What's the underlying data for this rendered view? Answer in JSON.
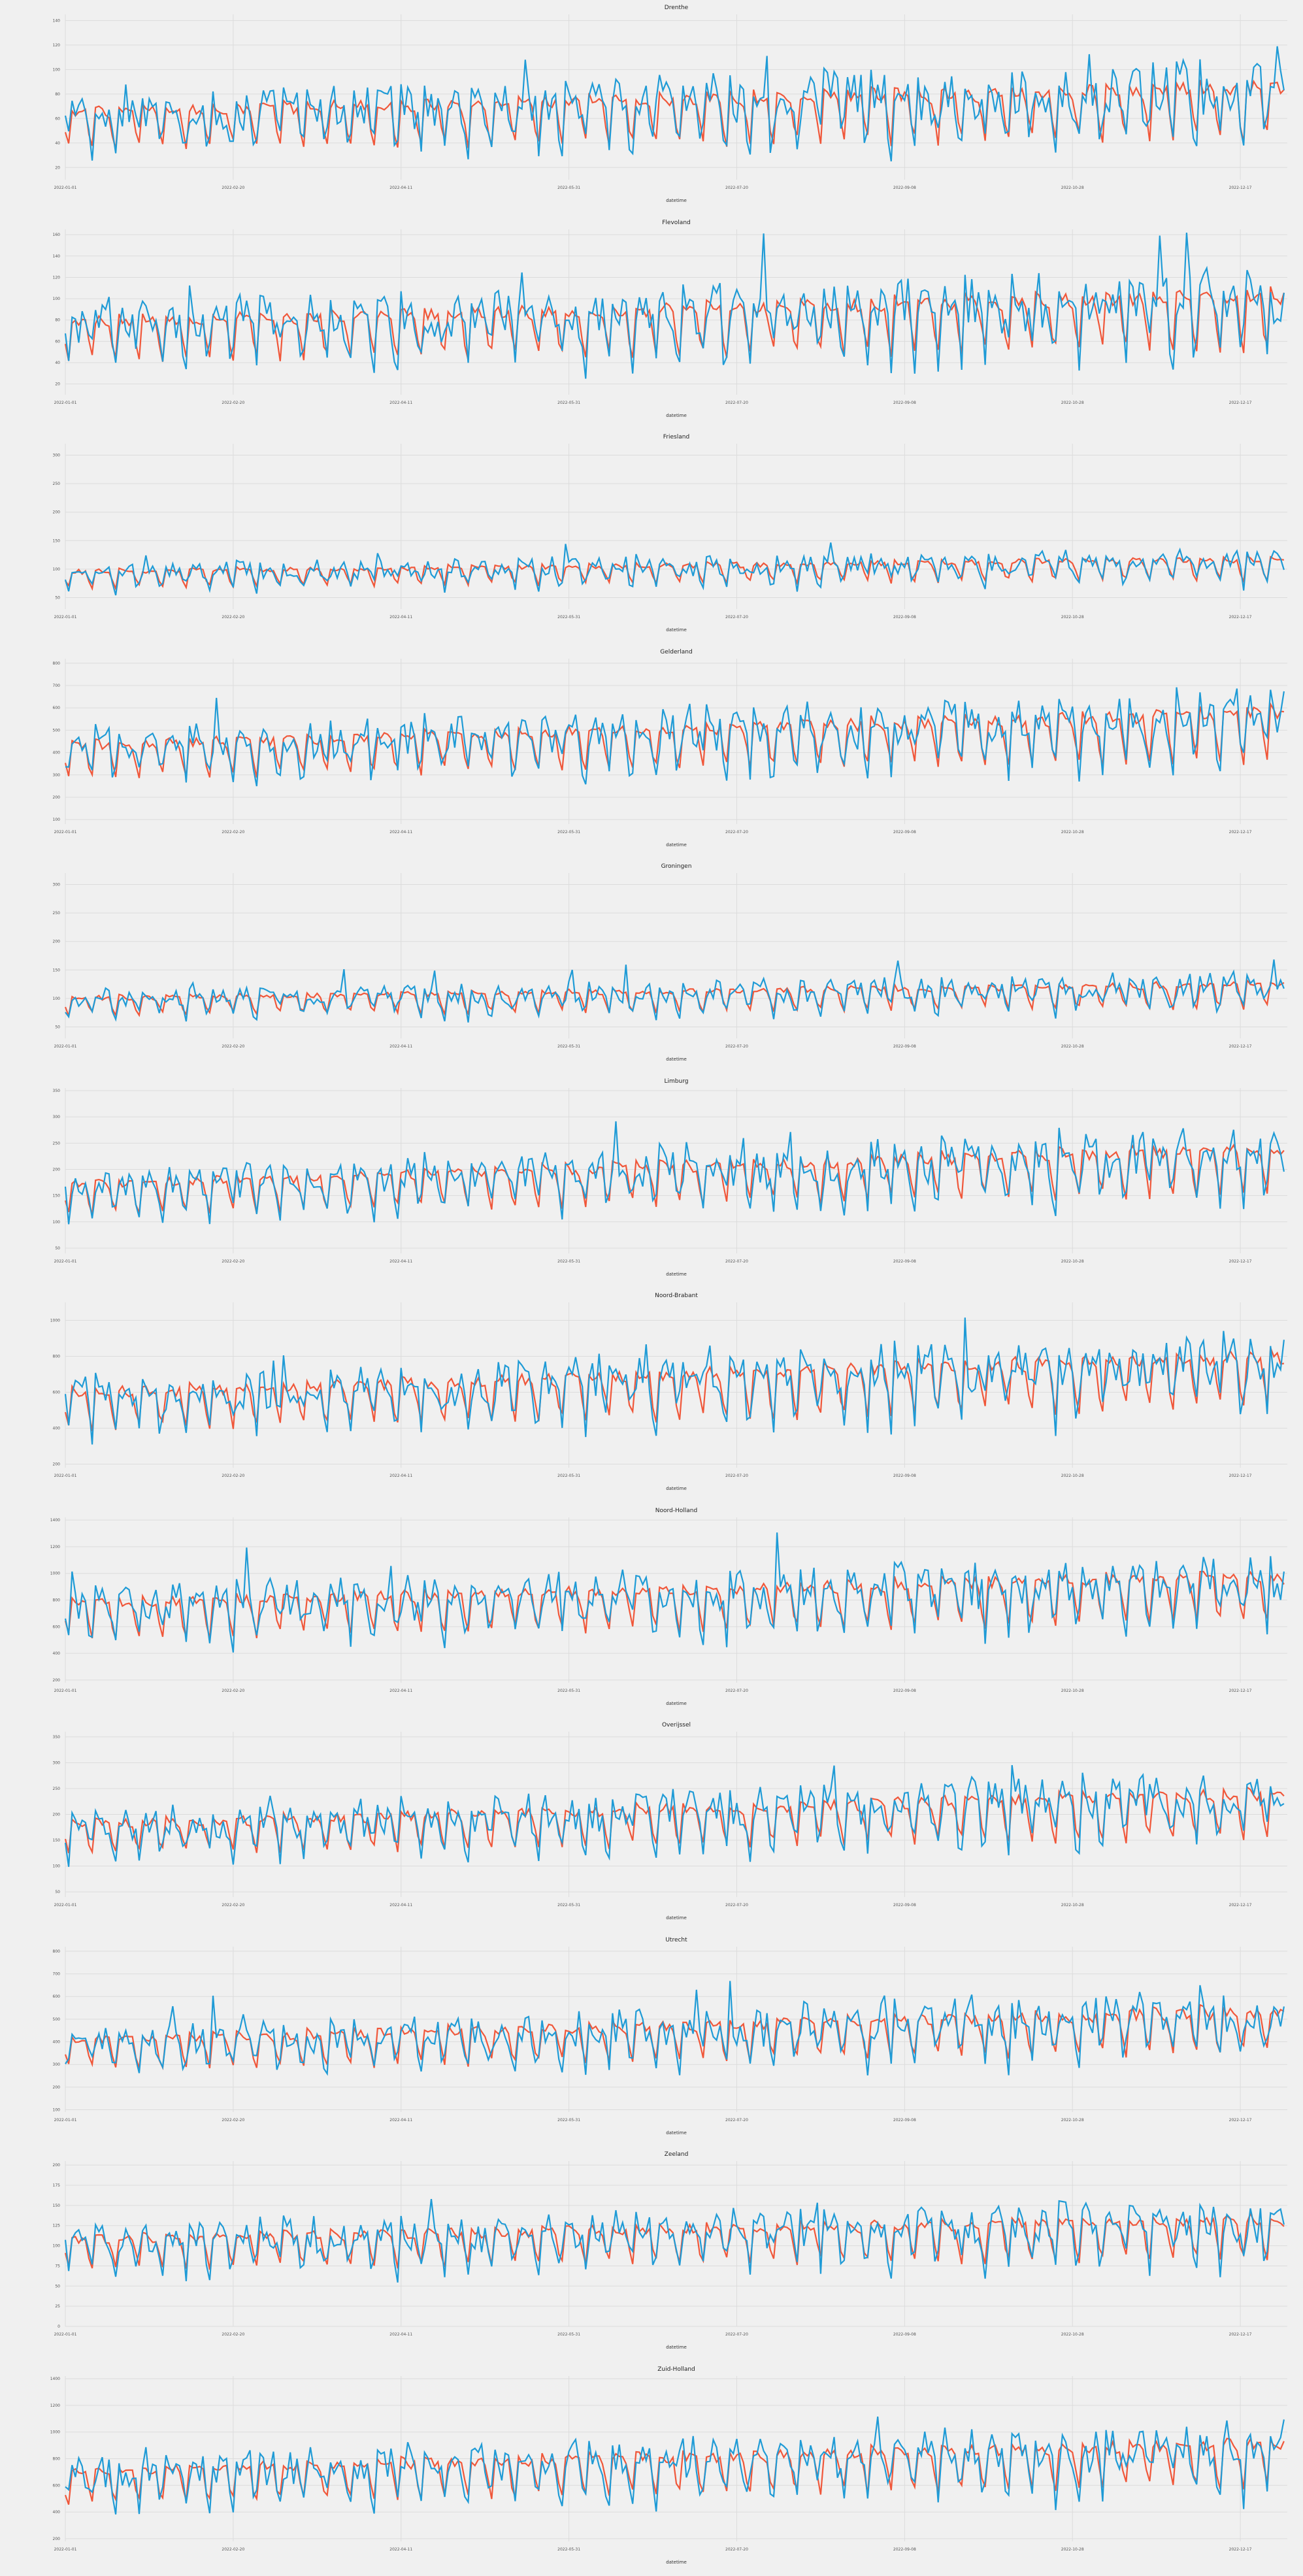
{
  "figure": {
    "background": "#f0f0f0",
    "style": "fivethirtyeight",
    "series_colors": {
      "actual": "#1f9bd6",
      "predicted": "#f0573a"
    },
    "grid": true,
    "legend": "none"
  },
  "chart_data": [
    {
      "type": "line",
      "title": "Drenthe",
      "xlabel": "datetime",
      "x_ticks": [
        "2022-01-01",
        "2022-02-20",
        "2022-04-11",
        "2022-05-31",
        "2022-07-20",
        "2022-09-08",
        "2022-10-28",
        "2022-12-17"
      ],
      "y_ticks": [
        20,
        40,
        60,
        80,
        100,
        120,
        140
      ],
      "ylim": [
        10,
        145
      ],
      "x_start": "2022-01-01",
      "x_end": "2022-12-31",
      "level": [
        55,
        70
      ],
      "amp": [
        20,
        30
      ],
      "series": [
        {
          "values_estimated": true
        },
        {
          "values_estimated": true
        }
      ]
    },
    {
      "type": "line",
      "title": "Flevoland",
      "xlabel": "datetime",
      "x_ticks": [
        "2022-01-01",
        "2022-02-20",
        "2022-04-11",
        "2022-05-31",
        "2022-07-20",
        "2022-09-08",
        "2022-10-28",
        "2022-12-17"
      ],
      "y_ticks": [
        20,
        40,
        60,
        80,
        100,
        120,
        140,
        160
      ],
      "ylim": [
        10,
        165
      ],
      "x_start": "2022-01-01",
      "x_end": "2022-12-31",
      "level": [
        65,
        85
      ],
      "amp": [
        25,
        35
      ],
      "series": [
        {
          "values_estimated": true
        },
        {
          "values_estimated": true
        }
      ]
    },
    {
      "type": "line",
      "title": "Friesland",
      "xlabel": "datetime",
      "x_ticks": [
        "2022-01-01",
        "2022-02-20",
        "2022-04-11",
        "2022-05-31",
        "2022-07-20",
        "2022-09-08",
        "2022-10-28",
        "2022-12-17"
      ],
      "y_ticks": [
        50,
        100,
        150,
        200,
        250,
        300
      ],
      "ylim": [
        30,
        320
      ],
      "x_start": "2022-01-01",
      "x_end": "2022-12-31",
      "level": [
        85,
        105
      ],
      "amp": [
        20,
        25
      ],
      "series": [
        {
          "values_estimated": true
        },
        {
          "values_estimated": true
        }
      ]
    },
    {
      "type": "line",
      "title": "Gelderland",
      "xlabel": "datetime",
      "x_ticks": [
        "2022-01-01",
        "2022-02-20",
        "2022-04-11",
        "2022-05-31",
        "2022-07-20",
        "2022-09-08",
        "2022-10-28",
        "2022-12-17"
      ],
      "y_ticks": [
        100,
        200,
        300,
        400,
        500,
        600,
        700,
        800
      ],
      "ylim": [
        80,
        820
      ],
      "x_start": "2022-01-01",
      "x_end": "2022-12-31",
      "level": [
        380,
        500
      ],
      "amp": [
        100,
        150
      ],
      "series": [
        {
          "values_estimated": true
        },
        {
          "values_estimated": true
        }
      ]
    },
    {
      "type": "line",
      "title": "Groningen",
      "xlabel": "datetime",
      "x_ticks": [
        "2022-01-01",
        "2022-02-20",
        "2022-04-11",
        "2022-05-31",
        "2022-07-20",
        "2022-09-08",
        "2022-10-28",
        "2022-12-17"
      ],
      "y_ticks": [
        50,
        100,
        150,
        200,
        250,
        300
      ],
      "ylim": [
        30,
        320
      ],
      "x_start": "2022-01-01",
      "x_end": "2022-12-31",
      "level": [
        90,
        110
      ],
      "amp": [
        20,
        30
      ],
      "series": [
        {
          "values_estimated": true
        },
        {
          "values_estimated": true
        }
      ]
    },
    {
      "type": "line",
      "title": "Limburg",
      "xlabel": "datetime",
      "x_ticks": [
        "2022-01-01",
        "2022-02-20",
        "2022-04-11",
        "2022-05-31",
        "2022-07-20",
        "2022-09-08",
        "2022-10-28",
        "2022-12-17"
      ],
      "y_ticks": [
        50,
        100,
        150,
        200,
        250,
        300,
        350
      ],
      "ylim": [
        40,
        355
      ],
      "x_start": "2022-01-01",
      "x_end": "2022-12-31",
      "level": [
        150,
        210
      ],
      "amp": [
        40,
        60
      ],
      "series": [
        {
          "values_estimated": true
        },
        {
          "values_estimated": true
        }
      ]
    },
    {
      "type": "line",
      "title": "Noord-Brabant",
      "xlabel": "datetime",
      "x_ticks": [
        "2022-01-01",
        "2022-02-20",
        "2022-04-11",
        "2022-05-31",
        "2022-07-20",
        "2022-09-08",
        "2022-10-28",
        "2022-12-17"
      ],
      "y_ticks": [
        200,
        400,
        600,
        800,
        1000
      ],
      "ylim": [
        180,
        1100
      ],
      "x_start": "2022-01-01",
      "x_end": "2022-12-31",
      "level": [
        520,
        700
      ],
      "amp": [
        140,
        200
      ],
      "series": [
        {
          "values_estimated": true
        },
        {
          "values_estimated": true
        }
      ]
    },
    {
      "type": "line",
      "title": "Noord-Holland",
      "xlabel": "datetime",
      "x_ticks": [
        "2022-01-01",
        "2022-02-20",
        "2022-04-11",
        "2022-05-31",
        "2022-07-20",
        "2022-09-08",
        "2022-10-28",
        "2022-12-17"
      ],
      "y_ticks": [
        200,
        400,
        600,
        800,
        1000,
        1200,
        1400
      ],
      "ylim": [
        180,
        1420
      ],
      "x_start": "2022-01-01",
      "x_end": "2022-12-31",
      "level": [
        680,
        860
      ],
      "amp": [
        180,
        240
      ],
      "series": [
        {
          "values_estimated": true
        },
        {
          "values_estimated": true
        }
      ]
    },
    {
      "type": "line",
      "title": "Overijssel",
      "xlabel": "datetime",
      "x_ticks": [
        "2022-01-01",
        "2022-02-20",
        "2022-04-11",
        "2022-05-31",
        "2022-07-20",
        "2022-09-08",
        "2022-10-28",
        "2022-12-17"
      ],
      "y_ticks": [
        50,
        100,
        150,
        200,
        250,
        300,
        350
      ],
      "ylim": [
        40,
        360
      ],
      "x_start": "2022-01-01",
      "x_end": "2022-12-31",
      "level": [
        160,
        210
      ],
      "amp": [
        40,
        60
      ],
      "series": [
        {
          "values_estimated": true
        },
        {
          "values_estimated": true
        }
      ]
    },
    {
      "type": "line",
      "title": "Utrecht",
      "xlabel": "datetime",
      "x_ticks": [
        "2022-01-01",
        "2022-02-20",
        "2022-04-11",
        "2022-05-31",
        "2022-07-20",
        "2022-09-08",
        "2022-10-28",
        "2022-12-17"
      ],
      "y_ticks": [
        100,
        200,
        300,
        400,
        500,
        600,
        700,
        800
      ],
      "ylim": [
        90,
        820
      ],
      "x_start": "2022-01-01",
      "x_end": "2022-12-31",
      "level": [
        360,
        470
      ],
      "amp": [
        90,
        130
      ],
      "series": [
        {
          "values_estimated": true
        },
        {
          "values_estimated": true
        }
      ]
    },
    {
      "type": "line",
      "title": "Zeeland",
      "xlabel": "datetime",
      "x_ticks": [
        "2022-01-01",
        "2022-02-20",
        "2022-04-11",
        "2022-05-31",
        "2022-07-20",
        "2022-09-08",
        "2022-10-28",
        "2022-12-17"
      ],
      "y_ticks": [
        0,
        25,
        50,
        75,
        100,
        125,
        150,
        175,
        200
      ],
      "ylim": [
        0,
        205
      ],
      "x_start": "2022-01-01",
      "x_end": "2022-12-31",
      "level": [
        95,
        115
      ],
      "amp": [
        25,
        35
      ],
      "series": [
        {
          "values_estimated": true
        },
        {
          "values_estimated": true
        }
      ]
    },
    {
      "type": "line",
      "title": "Zuid-Holland",
      "xlabel": "datetime",
      "x_ticks": [
        "2022-01-01",
        "2022-02-20",
        "2022-04-11",
        "2022-05-31",
        "2022-07-20",
        "2022-09-08",
        "2022-10-28",
        "2022-12-17"
      ],
      "y_ticks": [
        200,
        400,
        600,
        800,
        1000,
        1200,
        1400
      ],
      "ylim": [
        180,
        1420
      ],
      "x_start": "2022-01-01",
      "x_end": "2022-12-31",
      "level": [
        620,
        800
      ],
      "amp": [
        170,
        230
      ],
      "series": [
        {
          "values_estimated": true
        },
        {
          "values_estimated": true
        }
      ]
    }
  ]
}
